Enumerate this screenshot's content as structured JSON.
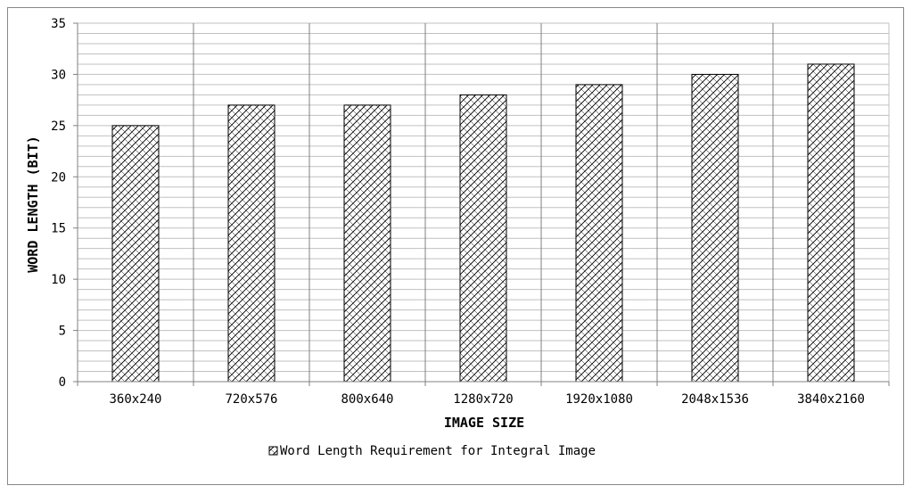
{
  "chart_data": {
    "type": "bar",
    "categories": [
      "360x240",
      "720x576",
      "800x640",
      "1280x720",
      "1920x1080",
      "2048x1536",
      "3840x2160"
    ],
    "series": [
      {
        "name": "Word Length Requirement for Integral Image",
        "values": [
          25,
          27,
          27,
          28,
          29,
          30,
          31
        ]
      }
    ],
    "xlabel": "IMAGE SIZE",
    "ylabel": "WORD LENGTH (BIT)",
    "ylim": [
      0,
      35
    ],
    "yticks": [
      0,
      5,
      10,
      15,
      20,
      25,
      30,
      35
    ],
    "minor_grid_step": 1,
    "grid": true,
    "legend": "bottom-center",
    "bar_fill": "crosshatch",
    "colors": {
      "bar_stroke": "#000000",
      "grid": "#c0c0c0",
      "axis": "#808080"
    }
  }
}
